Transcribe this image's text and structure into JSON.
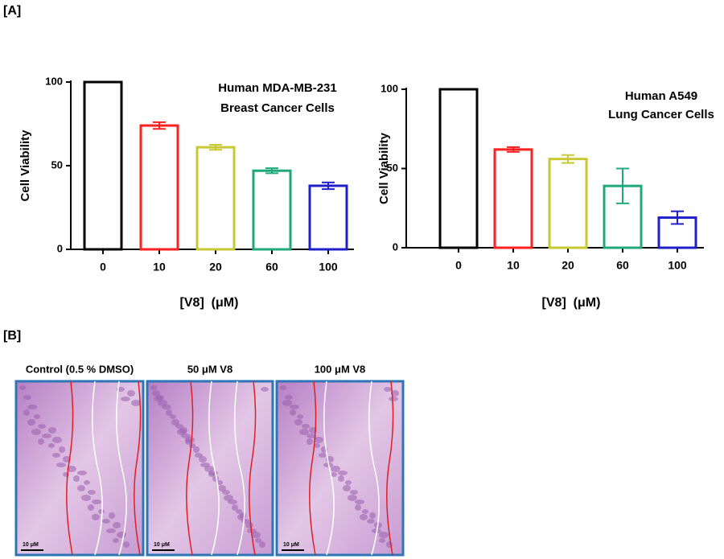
{
  "panel_a": {
    "label": "[A]"
  },
  "chart_data": [
    {
      "type": "bar",
      "annotation": [
        "Human MDA-MB-231",
        "Breast Cancer Cells"
      ],
      "ylabel": "Cell Viability",
      "xlabel": "[V8]  (μM)",
      "categories": [
        "0",
        "10",
        "20",
        "60",
        "100"
      ],
      "values": [
        100,
        74,
        61,
        47,
        38
      ],
      "errors": [
        0,
        2,
        1.5,
        1.5,
        2
      ],
      "colors": [
        "#000000",
        "#ff2020",
        "#c8c832",
        "#1fa87a",
        "#2020c8"
      ],
      "ylim": [
        0,
        100
      ],
      "yticks": [
        0,
        50,
        100
      ]
    },
    {
      "type": "bar",
      "annotation": [
        "Human A549",
        "Lung Cancer Cells"
      ],
      "ylabel": "Cell Viability",
      "xlabel": "[V8]  (μM)",
      "categories": [
        "0",
        "10",
        "20",
        "60",
        "100"
      ],
      "values": [
        100,
        62,
        56,
        39,
        19
      ],
      "errors": [
        0,
        1.5,
        2.5,
        11,
        4
      ],
      "colors": [
        "#000000",
        "#ff2020",
        "#c8c832",
        "#1fa87a",
        "#2020c8"
      ],
      "ylim": [
        0,
        100
      ],
      "yticks": [
        0,
        50,
        100
      ]
    }
  ],
  "panel_b": {
    "label": "[B]",
    "images": [
      {
        "caption": "Control (0.5 % DMSO)",
        "scale_label": "10 μM"
      },
      {
        "caption": "50 μM V8",
        "scale_label": "10 μM"
      },
      {
        "caption": "100 μM V8",
        "scale_label": "10 μM"
      }
    ]
  }
}
